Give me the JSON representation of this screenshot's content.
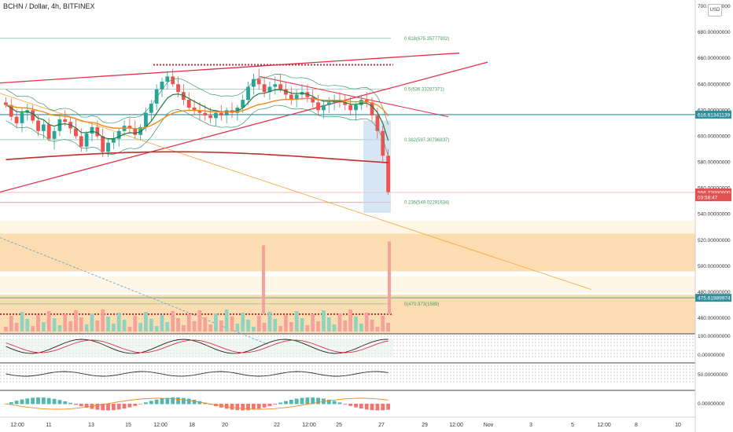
{
  "header": {
    "symbol": "BCHN / Dollar, 4h, BITFINEX"
  },
  "currency_button": "USD",
  "chart_data": {
    "type": "candlestick",
    "price_axis": {
      "range": [
        440,
        700
      ],
      "ticks": [
        "700.00000000",
        "680.00000000",
        "660.00000000",
        "640.00000000",
        "620.00000000",
        "600.00000000",
        "580.00000000",
        "560.00000000",
        "540.00000000",
        "520.00000000",
        "500.00000000",
        "480.00000000",
        "460.00000000"
      ],
      "markers": [
        {
          "label": "616.61341139",
          "value": 616.61,
          "color": "#2f8f9d"
        },
        {
          "label": "556.72000000",
          "value": 556.72,
          "color": "#e05252"
        },
        {
          "label": "03:58:47",
          "value": 553.0,
          "color": "#e05252"
        },
        {
          "label": "475.61989974",
          "value": 475.62,
          "color": "#2f8f9d"
        }
      ]
    },
    "osc_axes": [
      {
        "ticks": [
          "100.00000000",
          "0.00000000"
        ]
      },
      {
        "ticks": [
          "50.00000000"
        ]
      },
      {
        "ticks": [
          "0.00000000"
        ]
      }
    ],
    "time_axis": [
      "12:00",
      "11",
      "13",
      "15",
      "12:00",
      "18",
      "20",
      "22",
      "12:00",
      "25",
      "27",
      "29",
      "12:00",
      "Nov",
      "3",
      "5",
      "12:00",
      "8",
      "10"
    ],
    "fib_levels": [
      {
        "label": "0.618(675.35777902)",
        "value": 675.36
      },
      {
        "label": "0.5(636.33287371)",
        "value": 636.33
      },
      {
        "label": "0.382(597.30796837)",
        "value": 597.31
      },
      {
        "label": "0.236(549.02291634)",
        "value": 549.02
      },
      {
        "label": "0(470.973(1589)",
        "value": 470.97
      }
    ],
    "horizontal_line": 616.61,
    "support_zones": [
      [
        496,
        525
      ],
      [
        440,
        478
      ]
    ],
    "candles": [
      [
        626,
        630,
        622,
        624
      ],
      [
        624,
        629,
        612,
        615
      ],
      [
        615,
        621,
        606,
        610
      ],
      [
        610,
        622,
        603,
        618
      ],
      [
        618,
        625,
        612,
        620
      ],
      [
        620,
        624,
        610,
        612
      ],
      [
        612,
        616,
        600,
        604
      ],
      [
        604,
        612,
        598,
        609
      ],
      [
        609,
        614,
        596,
        598
      ],
      [
        598,
        607,
        590,
        604
      ],
      [
        604,
        616,
        600,
        613
      ],
      [
        613,
        620,
        608,
        611
      ],
      [
        611,
        615,
        602,
        606
      ],
      [
        606,
        613,
        598,
        600
      ],
      [
        600,
        606,
        588,
        592
      ],
      [
        592,
        604,
        588,
        602
      ],
      [
        602,
        610,
        596,
        607
      ],
      [
        607,
        612,
        598,
        600
      ],
      [
        600,
        606,
        584,
        588
      ],
      [
        588,
        598,
        584,
        595
      ],
      [
        595,
        603,
        590,
        598
      ],
      [
        598,
        606,
        592,
        604
      ],
      [
        604,
        612,
        600,
        608
      ],
      [
        608,
        614,
        602,
        606
      ],
      [
        606,
        612,
        598,
        601
      ],
      [
        601,
        609,
        597,
        607
      ],
      [
        607,
        622,
        604,
        618
      ],
      [
        618,
        628,
        612,
        625
      ],
      [
        625,
        640,
        620,
        636
      ],
      [
        636,
        645,
        630,
        642
      ],
      [
        642,
        650,
        636,
        646
      ],
      [
        646,
        652,
        638,
        640
      ],
      [
        640,
        646,
        630,
        634
      ],
      [
        634,
        640,
        624,
        628
      ],
      [
        628,
        634,
        620,
        622
      ],
      [
        622,
        628,
        616,
        620
      ],
      [
        620,
        626,
        612,
        618
      ],
      [
        618,
        624,
        612,
        616
      ],
      [
        616,
        622,
        610,
        614
      ],
      [
        614,
        620,
        608,
        618
      ],
      [
        618,
        624,
        612,
        616
      ],
      [
        616,
        622,
        610,
        620
      ],
      [
        620,
        626,
        614,
        618
      ],
      [
        618,
        624,
        612,
        622
      ],
      [
        622,
        632,
        618,
        628
      ],
      [
        628,
        642,
        624,
        638
      ],
      [
        638,
        648,
        632,
        644
      ],
      [
        644,
        652,
        636,
        640
      ],
      [
        640,
        646,
        630,
        634
      ],
      [
        634,
        642,
        628,
        638
      ],
      [
        638,
        646,
        632,
        640
      ],
      [
        640,
        648,
        634,
        636
      ],
      [
        636,
        642,
        628,
        632
      ],
      [
        632,
        638,
        624,
        628
      ],
      [
        628,
        636,
        622,
        632
      ],
      [
        632,
        640,
        628,
        634
      ],
      [
        634,
        640,
        626,
        630
      ],
      [
        630,
        636,
        622,
        626
      ],
      [
        626,
        632,
        616,
        620
      ],
      [
        620,
        628,
        614,
        624
      ],
      [
        624,
        630,
        618,
        626
      ],
      [
        626,
        632,
        620,
        628
      ],
      [
        628,
        634,
        622,
        626
      ],
      [
        626,
        632,
        620,
        624
      ],
      [
        624,
        630,
        616,
        620
      ],
      [
        620,
        626,
        612,
        624
      ],
      [
        624,
        632,
        620,
        628
      ],
      [
        628,
        634,
        622,
        626
      ],
      [
        626,
        630,
        612,
        616
      ],
      [
        616,
        622,
        598,
        604
      ],
      [
        604,
        608,
        580,
        585
      ],
      [
        585,
        590,
        555,
        557
      ]
    ]
  }
}
